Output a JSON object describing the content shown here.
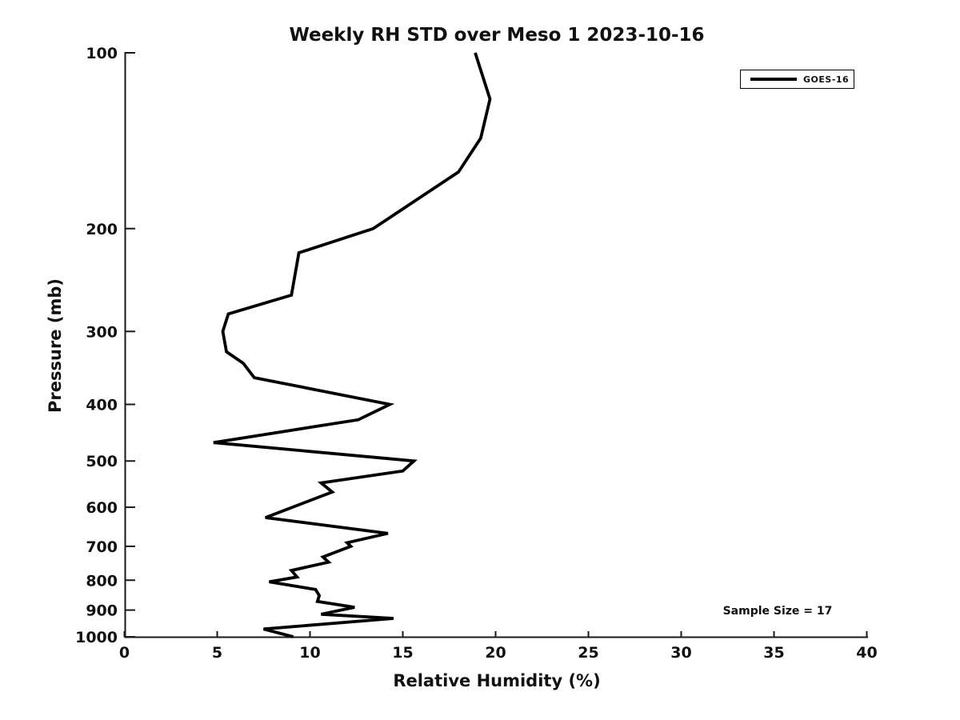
{
  "figure": {
    "title": "Weekly RH STD over Meso 1 2023-10-16",
    "xlabel": "Relative Humidity (%)",
    "ylabel": "Pressure (mb)",
    "annotation": "Sample Size = 17",
    "legend": {
      "entries": [
        {
          "label": "GOES-16",
          "color": "#000000"
        }
      ]
    }
  },
  "chart_data": {
    "type": "line",
    "title": "Weekly RH STD over Meso 1 2023-10-16",
    "xlabel": "Relative Humidity (%)",
    "ylabel": "Pressure (mb)",
    "xlim": [
      0,
      40
    ],
    "ylim": [
      100,
      1000
    ],
    "x_ticks": [
      0,
      5,
      10,
      15,
      20,
      25,
      30,
      35,
      40
    ],
    "y_ticks": [
      100,
      200,
      300,
      400,
      500,
      600,
      700,
      800,
      900,
      1000
    ],
    "y_scale": "log",
    "y_inverted": true,
    "grid": false,
    "legend_position": "top-right",
    "annotation": "Sample Size = 17",
    "axis_color": "#1a1a1a",
    "line_color": "#000000",
    "line_width": 3.8,
    "series": [
      {
        "name": "GOES-16",
        "pressure_mb": [
          100,
          120,
          140,
          160,
          200,
          220,
          260,
          280,
          300,
          325,
          340,
          360,
          400,
          425,
          465,
          500,
          520,
          545,
          565,
          625,
          665,
          690,
          700,
          730,
          745,
          770,
          790,
          805,
          830,
          850,
          870,
          890,
          915,
          930,
          970,
          1000
        ],
        "rh_std_percent": [
          18.9,
          19.7,
          19.2,
          18.0,
          13.4,
          9.4,
          9.0,
          5.6,
          5.3,
          5.5,
          6.4,
          7.0,
          14.3,
          12.6,
          4.8,
          15.6,
          15.0,
          10.6,
          11.2,
          7.6,
          14.2,
          12.0,
          12.2,
          10.7,
          11.0,
          9.0,
          9.3,
          7.8,
          10.3,
          10.5,
          10.4,
          12.4,
          10.6,
          14.5,
          7.5,
          9.1
        ]
      }
    ]
  }
}
